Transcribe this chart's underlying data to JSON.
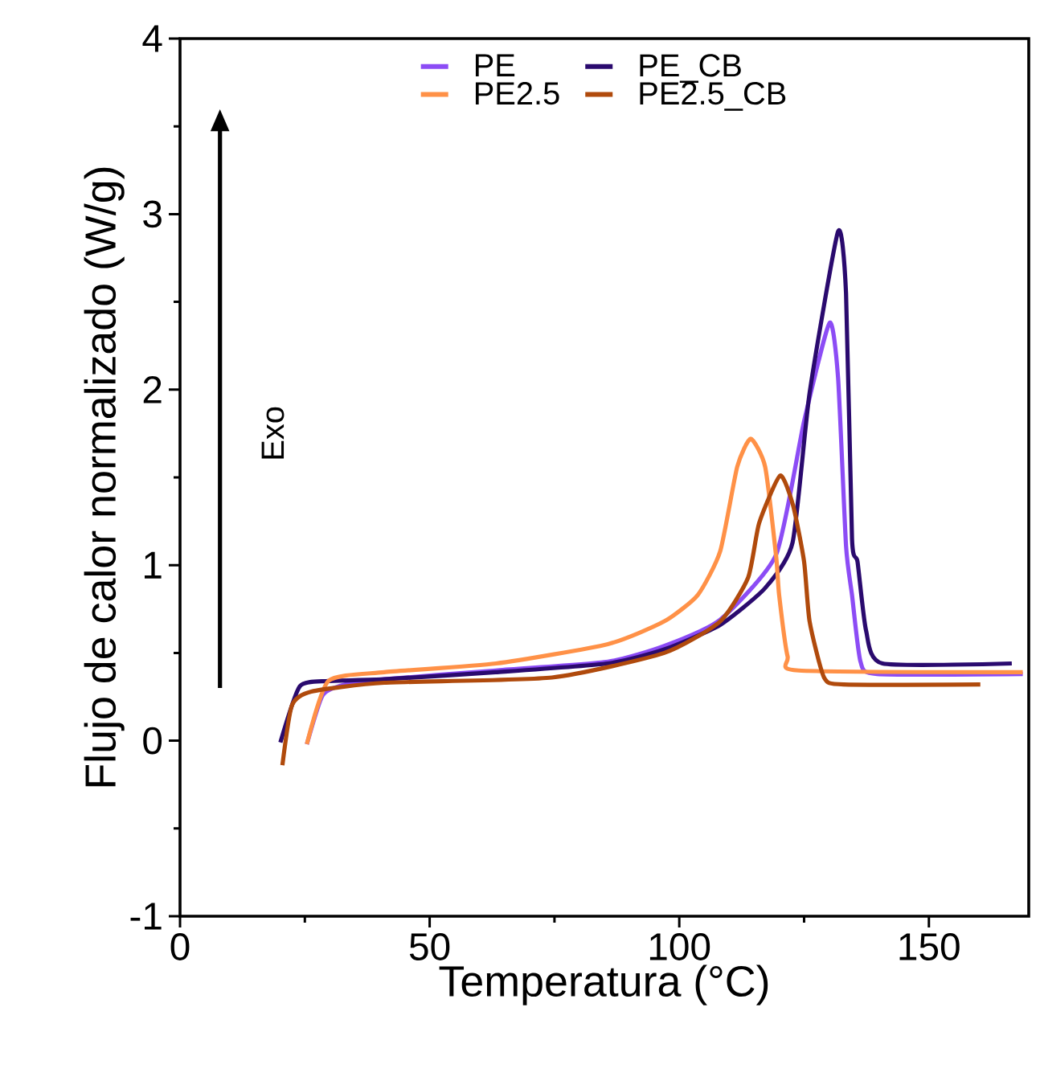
{
  "chart_data": {
    "type": "line",
    "xlabel": "Temperatura (°C)",
    "ylabel": "Flujo de calor normalizado (W/g)",
    "xlim": [
      0,
      170
    ],
    "ylim": [
      -1,
      4
    ],
    "xticks": [
      0,
      50,
      100,
      150
    ],
    "yticks": [
      -1,
      0,
      1,
      2,
      3,
      4
    ],
    "legend": "top",
    "grid": false,
    "line_style": "solid",
    "marker": "none",
    "annotations": [
      "Exo"
    ],
    "series": [
      {
        "name": "PE",
        "color": "#8c4cf5",
        "x": [
          25.4,
          28.6,
          33,
          40.9,
          63.2,
          85.7,
          97,
          108.2,
          119.4,
          125,
          130.1,
          131.8,
          133.4,
          134.6,
          136.3,
          139.6,
          168.8
        ],
        "values": [
          -0.02,
          0.26,
          0.32,
          0.35,
          0.4,
          0.45,
          0.54,
          0.69,
          1.06,
          1.82,
          2.38,
          2.07,
          1.11,
          0.83,
          0.45,
          0.38,
          0.38
        ]
      },
      {
        "name": "PE_CB",
        "color": "#2a0a6e",
        "x": [
          20.1,
          24,
          29.7,
          40.9,
          63.2,
          85.7,
          97,
          108.2,
          117.2,
          122.7,
          126.1,
          131.8,
          133.4,
          134.6,
          135.7,
          137.4,
          140.7,
          166.6
        ],
        "values": [
          -0.01,
          0.31,
          0.34,
          0.35,
          0.39,
          0.44,
          0.52,
          0.66,
          0.87,
          1.13,
          1.98,
          2.9,
          2.55,
          1.15,
          1.02,
          0.63,
          0.44,
          0.44
        ]
      },
      {
        "name": "PE2.5",
        "color": "#ff9147",
        "x": [
          25.4,
          29.7,
          40.9,
          63.3,
          85.7,
          97,
          103.7,
          108.2,
          111.6,
          114.3,
          117.2,
          119.4,
          120,
          121.7,
          123.9,
          168.8
        ],
        "values": [
          -0.02,
          0.34,
          0.39,
          0.44,
          0.55,
          0.68,
          0.83,
          1.08,
          1.56,
          1.72,
          1.56,
          1.05,
          0.83,
          0.48,
          0.4,
          0.39
        ]
      },
      {
        "name": "PE2.5_CB",
        "color": "#b04a0c",
        "x": [
          20.5,
          22.4,
          26.3,
          40.9,
          74.5,
          97,
          108.2,
          113.8,
          116,
          120.2,
          122.8,
          125,
          126.1,
          129,
          132.9,
          160.3
        ],
        "values": [
          -0.14,
          0.2,
          0.28,
          0.33,
          0.36,
          0.5,
          0.68,
          0.93,
          1.24,
          1.51,
          1.34,
          1.02,
          0.68,
          0.36,
          0.32,
          0.32
        ]
      }
    ]
  }
}
